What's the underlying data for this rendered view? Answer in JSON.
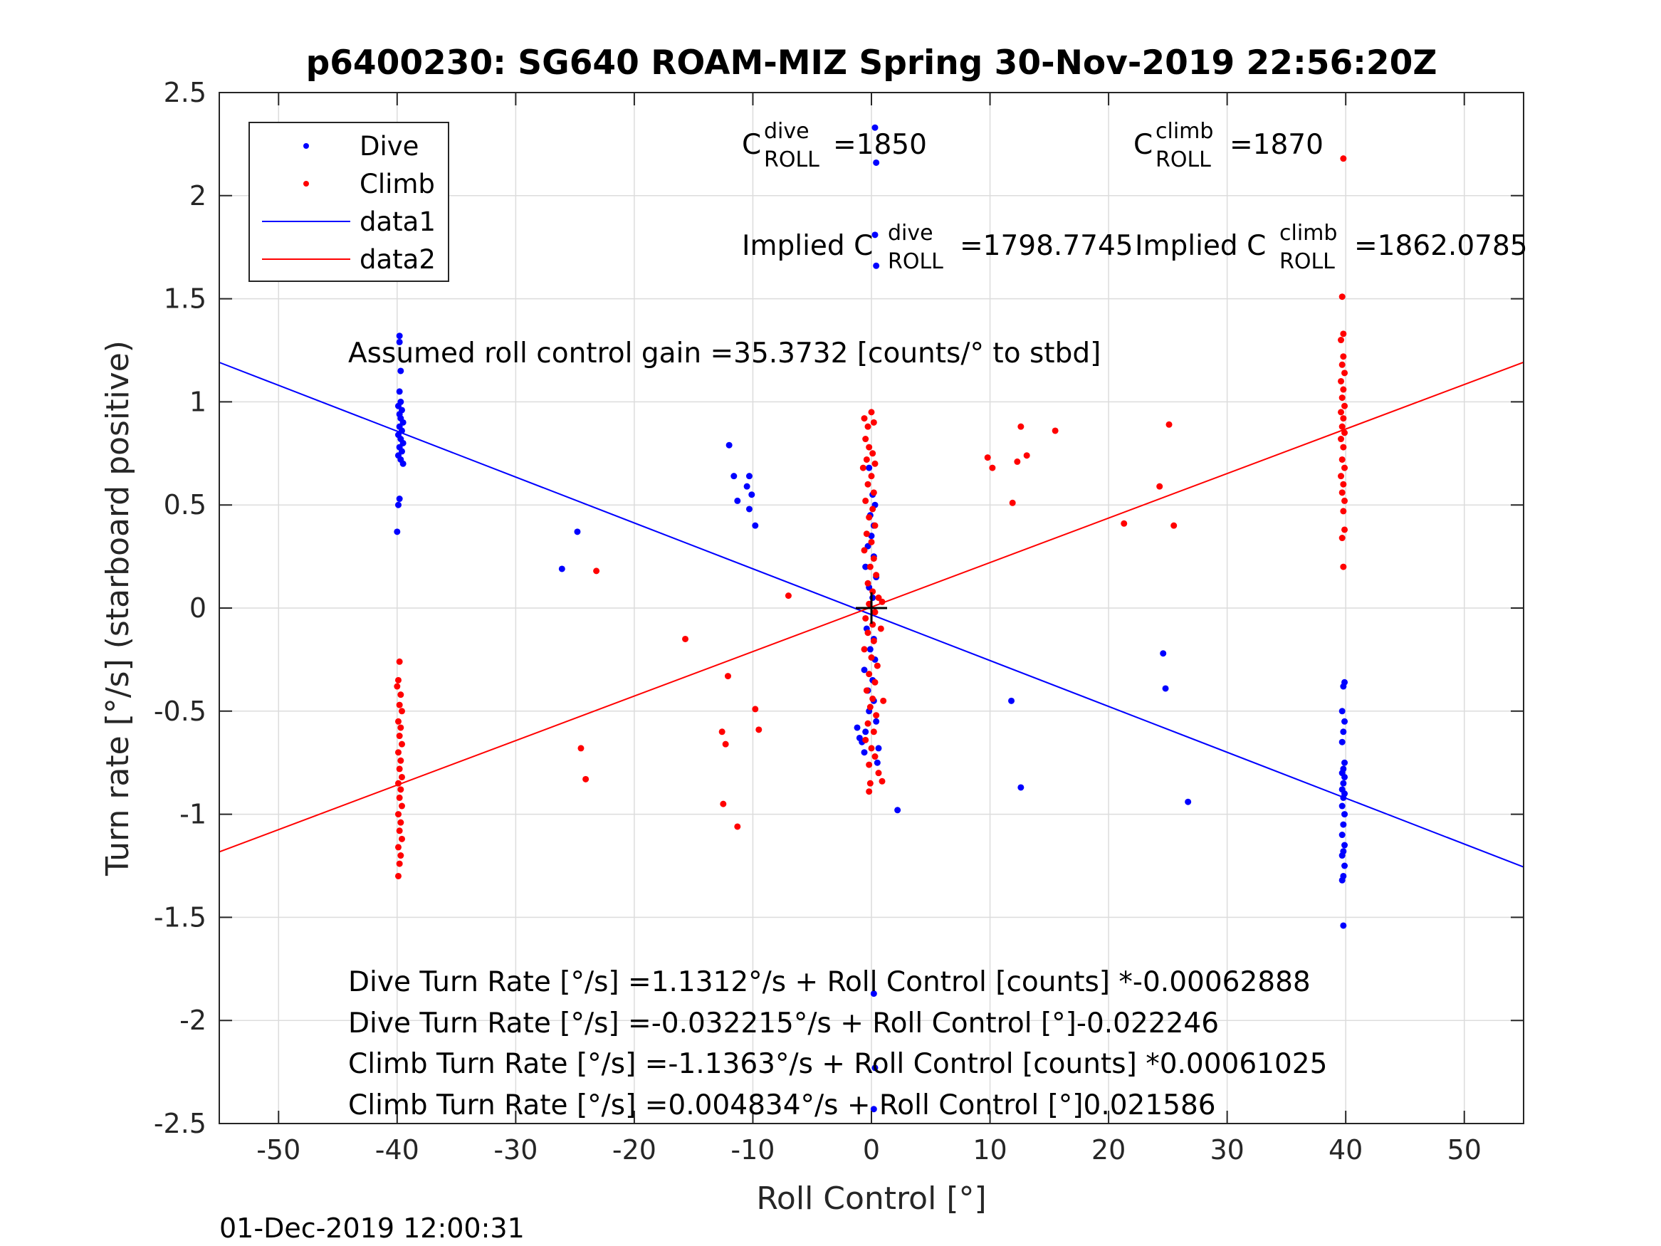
{
  "chart_data": {
    "type": "scatter",
    "title": "p6400230: SG640 ROAM-MIZ Spring 30-Nov-2019 22:56:20Z",
    "xlabel": "Roll Control [°]",
    "ylabel": "Turn rate [°/s] (starboard positive)",
    "xlim": [
      -55,
      55
    ],
    "ylim": [
      -2.5,
      2.5
    ],
    "xticks": [
      -50,
      -40,
      -30,
      -20,
      -10,
      0,
      10,
      20,
      30,
      40,
      50
    ],
    "yticks": [
      -2.5,
      -2,
      -1.5,
      -1,
      -0.5,
      0,
      0.5,
      1,
      1.5,
      2,
      2.5
    ],
    "xtick_labels": [
      "-50",
      "-40",
      "-30",
      "-20",
      "-10",
      "0",
      "10",
      "20",
      "30",
      "40",
      "50"
    ],
    "ytick_labels": [
      "-2.5",
      "-2",
      "-1.5",
      "-1",
      "-0.5",
      "0",
      "0.5",
      "1",
      "1.5",
      "2",
      "2.5"
    ],
    "grid": true,
    "legend_position": "top-left",
    "legend": [
      "Dive",
      "Climb",
      "data1",
      "data2"
    ],
    "series": [
      {
        "name": "Dive",
        "kind": "points",
        "color": "#0000ff",
        "points": [
          [
            -39.8,
            1.32
          ],
          [
            -39.8,
            1.29
          ],
          [
            -39.7,
            1.15
          ],
          [
            -39.8,
            1.05
          ],
          [
            -39.7,
            1.0
          ],
          [
            -39.9,
            0.98
          ],
          [
            -39.6,
            0.96
          ],
          [
            -39.8,
            0.94
          ],
          [
            -39.7,
            0.92
          ],
          [
            -39.5,
            0.9
          ],
          [
            -39.8,
            0.88
          ],
          [
            -39.6,
            0.86
          ],
          [
            -39.9,
            0.84
          ],
          [
            -39.7,
            0.82
          ],
          [
            -39.5,
            0.8
          ],
          [
            -39.8,
            0.78
          ],
          [
            -39.6,
            0.76
          ],
          [
            -39.9,
            0.74
          ],
          [
            -39.7,
            0.72
          ],
          [
            -39.5,
            0.7
          ],
          [
            -39.8,
            0.53
          ],
          [
            -39.9,
            0.5
          ],
          [
            -40.0,
            0.37
          ],
          [
            39.9,
            -0.36
          ],
          [
            39.8,
            -0.38
          ],
          [
            39.7,
            -0.5
          ],
          [
            39.9,
            -0.55
          ],
          [
            39.8,
            -0.6
          ],
          [
            39.7,
            -0.65
          ],
          [
            39.9,
            -0.75
          ],
          [
            39.8,
            -0.78
          ],
          [
            39.7,
            -0.8
          ],
          [
            39.9,
            -0.82
          ],
          [
            39.8,
            -0.85
          ],
          [
            39.7,
            -0.88
          ],
          [
            39.9,
            -0.9
          ],
          [
            39.8,
            -0.92
          ],
          [
            39.7,
            -0.96
          ],
          [
            39.9,
            -1.0
          ],
          [
            39.8,
            -1.05
          ],
          [
            39.7,
            -1.1
          ],
          [
            39.9,
            -1.15
          ],
          [
            39.8,
            -1.18
          ],
          [
            39.7,
            -1.2
          ],
          [
            39.9,
            -1.25
          ],
          [
            39.8,
            -1.3
          ],
          [
            39.7,
            -1.32
          ],
          [
            39.8,
            -1.54
          ],
          [
            0.3,
            2.33
          ],
          [
            0.4,
            2.16
          ],
          [
            0.3,
            1.81
          ],
          [
            0.4,
            1.66
          ],
          [
            0.2,
            -1.87
          ],
          [
            0.3,
            -2.23
          ],
          [
            0.2,
            -2.43
          ],
          [
            -0.2,
            0.68
          ],
          [
            0.1,
            0.55
          ],
          [
            0.3,
            0.5
          ],
          [
            -0.1,
            0.45
          ],
          [
            0.2,
            0.4
          ],
          [
            0.0,
            0.35
          ],
          [
            -0.3,
            0.3
          ],
          [
            0.2,
            0.25
          ],
          [
            -0.5,
            0.2
          ],
          [
            0.4,
            0.15
          ],
          [
            -0.2,
            0.1
          ],
          [
            0.1,
            0.05
          ],
          [
            -0.4,
            -0.1
          ],
          [
            0.2,
            -0.15
          ],
          [
            -0.1,
            -0.2
          ],
          [
            0.3,
            -0.25
          ],
          [
            -0.6,
            -0.3
          ],
          [
            0.1,
            -0.35
          ],
          [
            -0.3,
            -0.4
          ],
          [
            0.2,
            -0.45
          ],
          [
            -0.2,
            -0.5
          ],
          [
            0.4,
            -0.55
          ],
          [
            -0.5,
            -0.6
          ],
          [
            -0.8,
            -0.65
          ],
          [
            -0.6,
            -0.7
          ],
          [
            0.5,
            -0.75
          ],
          [
            -1.2,
            -0.58
          ],
          [
            -1.0,
            -0.63
          ],
          [
            0.6,
            -0.68
          ],
          [
            -12.0,
            0.79
          ],
          [
            -11.6,
            0.64
          ],
          [
            -11.3,
            0.52
          ],
          [
            -10.3,
            0.64
          ],
          [
            -10.5,
            0.59
          ],
          [
            -10.1,
            0.55
          ],
          [
            -10.3,
            0.48
          ],
          [
            -9.8,
            0.4
          ],
          [
            -24.8,
            0.37
          ],
          [
            -26.1,
            0.19
          ],
          [
            11.8,
            -0.45
          ],
          [
            12.6,
            -0.87
          ],
          [
            2.2,
            -0.98
          ],
          [
            24.6,
            -0.22
          ],
          [
            24.8,
            -0.39
          ],
          [
            26.7,
            -0.94
          ]
        ]
      },
      {
        "name": "Climb",
        "kind": "points",
        "color": "#ff0000",
        "points": [
          [
            -39.8,
            -0.26
          ],
          [
            -39.9,
            -0.35
          ],
          [
            -40.0,
            -0.38
          ],
          [
            -39.7,
            -0.42
          ],
          [
            -39.8,
            -0.47
          ],
          [
            -39.6,
            -0.5
          ],
          [
            -39.9,
            -0.55
          ],
          [
            -39.7,
            -0.58
          ],
          [
            -39.8,
            -0.62
          ],
          [
            -39.6,
            -0.66
          ],
          [
            -39.9,
            -0.7
          ],
          [
            -39.7,
            -0.74
          ],
          [
            -39.8,
            -0.78
          ],
          [
            -39.6,
            -0.82
          ],
          [
            -39.9,
            -0.85
          ],
          [
            -39.7,
            -0.88
          ],
          [
            -39.8,
            -0.92
          ],
          [
            -39.6,
            -0.96
          ],
          [
            -39.9,
            -1.0
          ],
          [
            -39.7,
            -1.04
          ],
          [
            -39.8,
            -1.08
          ],
          [
            -39.6,
            -1.12
          ],
          [
            -39.9,
            -1.16
          ],
          [
            -39.7,
            -1.2
          ],
          [
            -39.8,
            -1.24
          ],
          [
            -39.9,
            -1.3
          ],
          [
            39.8,
            2.18
          ],
          [
            39.7,
            1.51
          ],
          [
            39.8,
            1.33
          ],
          [
            39.6,
            1.3
          ],
          [
            39.8,
            1.22
          ],
          [
            39.7,
            1.18
          ],
          [
            39.9,
            1.14
          ],
          [
            39.6,
            1.1
          ],
          [
            39.8,
            1.06
          ],
          [
            39.7,
            1.02
          ],
          [
            39.9,
            0.98
          ],
          [
            39.6,
            0.95
          ],
          [
            39.8,
            0.92
          ],
          [
            39.7,
            0.88
          ],
          [
            39.9,
            0.85
          ],
          [
            39.6,
            0.82
          ],
          [
            39.8,
            0.78
          ],
          [
            39.7,
            0.72
          ],
          [
            39.9,
            0.68
          ],
          [
            39.6,
            0.64
          ],
          [
            39.8,
            0.6
          ],
          [
            39.7,
            0.56
          ],
          [
            39.9,
            0.52
          ],
          [
            39.8,
            0.47
          ],
          [
            39.9,
            0.38
          ],
          [
            39.7,
            0.34
          ],
          [
            39.8,
            0.2
          ],
          [
            -0.6,
            0.92
          ],
          [
            -0.3,
            0.88
          ],
          [
            0.0,
            0.95
          ],
          [
            0.2,
            0.9
          ],
          [
            -0.5,
            0.82
          ],
          [
            -0.2,
            0.78
          ],
          [
            0.1,
            0.75
          ],
          [
            -0.4,
            0.72
          ],
          [
            0.3,
            0.7
          ],
          [
            -0.7,
            0.68
          ],
          [
            0.0,
            0.64
          ],
          [
            -0.3,
            0.6
          ],
          [
            0.2,
            0.56
          ],
          [
            -0.5,
            0.52
          ],
          [
            0.1,
            0.48
          ],
          [
            -0.2,
            0.44
          ],
          [
            0.3,
            0.4
          ],
          [
            -0.4,
            0.36
          ],
          [
            0.0,
            0.32
          ],
          [
            -0.6,
            0.28
          ],
          [
            0.2,
            0.24
          ],
          [
            -0.1,
            0.2
          ],
          [
            0.4,
            0.16
          ],
          [
            -0.3,
            0.12
          ],
          [
            0.1,
            0.08
          ],
          [
            0.6,
            0.05
          ],
          [
            0.9,
            0.03
          ],
          [
            -0.2,
            0.02
          ],
          [
            0.3,
            -0.02
          ],
          [
            -0.5,
            -0.05
          ],
          [
            0.1,
            -0.08
          ],
          [
            0.8,
            -0.1
          ],
          [
            -0.3,
            -0.12
          ],
          [
            0.2,
            -0.16
          ],
          [
            -0.6,
            -0.2
          ],
          [
            0.0,
            -0.24
          ],
          [
            0.5,
            -0.28
          ],
          [
            -0.2,
            -0.32
          ],
          [
            0.3,
            -0.36
          ],
          [
            -0.4,
            -0.4
          ],
          [
            0.1,
            -0.44
          ],
          [
            -0.1,
            -0.48
          ],
          [
            0.4,
            -0.52
          ],
          [
            -0.3,
            -0.56
          ],
          [
            0.2,
            -0.6
          ],
          [
            -0.5,
            -0.64
          ],
          [
            0.0,
            -0.68
          ],
          [
            0.3,
            -0.72
          ],
          [
            -0.2,
            -0.76
          ],
          [
            0.6,
            -0.8
          ],
          [
            -0.1,
            -0.85
          ],
          [
            0.9,
            -0.84
          ],
          [
            -0.2,
            -0.89
          ],
          [
            1.0,
            -0.45
          ],
          [
            -7.0,
            0.06
          ],
          [
            -15.7,
            -0.15
          ],
          [
            -12.1,
            -0.33
          ],
          [
            -12.6,
            -0.6
          ],
          [
            -12.3,
            -0.66
          ],
          [
            -9.8,
            -0.49
          ],
          [
            -9.5,
            -0.59
          ],
          [
            -24.5,
            -0.68
          ],
          [
            -24.1,
            -0.83
          ],
          [
            -23.2,
            0.18
          ],
          [
            -12.5,
            -0.95
          ],
          [
            -11.3,
            -1.06
          ],
          [
            9.8,
            0.73
          ],
          [
            10.2,
            0.68
          ],
          [
            12.6,
            0.88
          ],
          [
            12.3,
            0.71
          ],
          [
            13.1,
            0.74
          ],
          [
            15.5,
            0.86
          ],
          [
            11.9,
            0.51
          ],
          [
            21.3,
            0.41
          ],
          [
            24.3,
            0.59
          ],
          [
            25.1,
            0.89
          ],
          [
            25.5,
            0.4
          ]
        ]
      },
      {
        "name": "data1",
        "kind": "line",
        "color": "#0000ff",
        "points": [
          [
            -55,
            1.1913
          ],
          [
            55,
            -1.2557
          ]
        ]
      },
      {
        "name": "data2",
        "kind": "line",
        "color": "#ff0000",
        "points": [
          [
            -55,
            -1.1824
          ],
          [
            55,
            1.192
          ]
        ]
      }
    ],
    "annotations": {
      "c_dive_main": "C",
      "c_dive_sup": "dive",
      "c_dive_sub": "ROLL",
      "c_dive_value": "=1850",
      "c_climb_main": "C",
      "c_climb_sup": "climb",
      "c_climb_sub": "ROLL",
      "c_climb_value": "=1870",
      "implied_dive_main": "Implied C",
      "implied_dive_sup": "dive",
      "implied_dive_sub": "ROLL",
      "implied_dive_value": "=1798.7745",
      "implied_climb_main": "Implied C",
      "implied_climb_sup": "climb",
      "implied_climb_sub": "ROLL",
      "implied_climb_value": "=1862.0785",
      "gain": "Assumed roll control gain =35.3732 [counts/° to stbd]",
      "eq1": "Dive Turn Rate [°/s] =1.1312°/s + Roll Control [counts] *-0.00062888",
      "eq2": "Dive Turn Rate [°/s] =-0.032215°/s + Roll Control [°]-0.022246",
      "eq3": "Climb Turn Rate [°/s] =-1.1363°/s + Roll Control [counts] *0.00061025",
      "eq4": "Climb Turn Rate [°/s] =0.004834°/s + Roll Control [°]0.021586"
    },
    "timestamp": "01-Dec-2019 12:00:31"
  }
}
